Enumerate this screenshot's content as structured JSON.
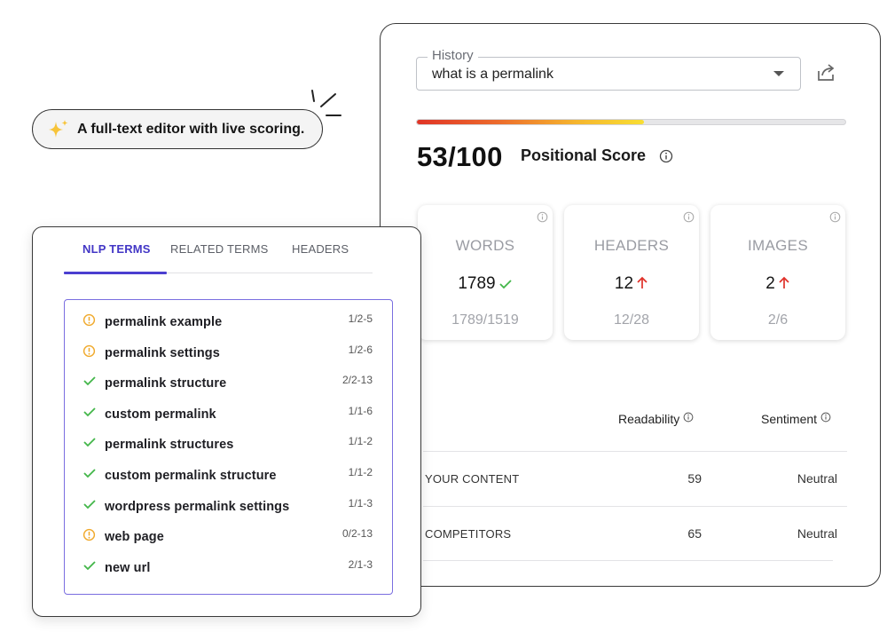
{
  "badge": {
    "text": "A full-text editor with live scoring.",
    "icon": "sparkles-icon"
  },
  "history": {
    "label": "History",
    "value": "what is a permalink"
  },
  "score": {
    "value": "53/100",
    "label": "Positional Score",
    "progress": 0.53
  },
  "stats": [
    {
      "name": "WORDS",
      "value": "1789",
      "status": "check",
      "sub": "1789/1519"
    },
    {
      "name": "HEADERS",
      "value": "12",
      "status": "up",
      "sub": "12/28"
    },
    {
      "name": "IMAGES",
      "value": "2",
      "status": "up",
      "sub": "2/6"
    }
  ],
  "readability": {
    "col_readability": "Readability",
    "col_sentiment": "Sentiment",
    "rows": [
      {
        "label": "YOUR CONTENT",
        "value": "59",
        "sentiment": "Neutral"
      },
      {
        "label": "COMPETITORS",
        "value": "65",
        "sentiment": "Neutral"
      }
    ]
  },
  "tabs": [
    "NLP TERMS",
    "RELATED TERMS",
    "HEADERS"
  ],
  "terms": [
    {
      "name": "permalink example",
      "count": "1/2-5",
      "status": "warning"
    },
    {
      "name": "permalink settings",
      "count": "1/2-6",
      "status": "warning"
    },
    {
      "name": "permalink structure",
      "count": "2/2-13",
      "status": "check"
    },
    {
      "name": "custom permalink",
      "count": "1/1-6",
      "status": "check"
    },
    {
      "name": "permalink structures",
      "count": "1/1-2",
      "status": "check"
    },
    {
      "name": "custom permalink structure",
      "count": "1/1-2",
      "status": "check"
    },
    {
      "name": "wordpress permalink settings",
      "count": "1/1-3",
      "status": "check"
    },
    {
      "name": "web page",
      "count": "0/2-13",
      "status": "warning"
    },
    {
      "name": "new url",
      "count": "2/1-3",
      "status": "check"
    }
  ],
  "colors": {
    "accent": "#4b3fd0",
    "check": "#43b649",
    "warning": "#f0a92b",
    "up": "#e0312a"
  }
}
